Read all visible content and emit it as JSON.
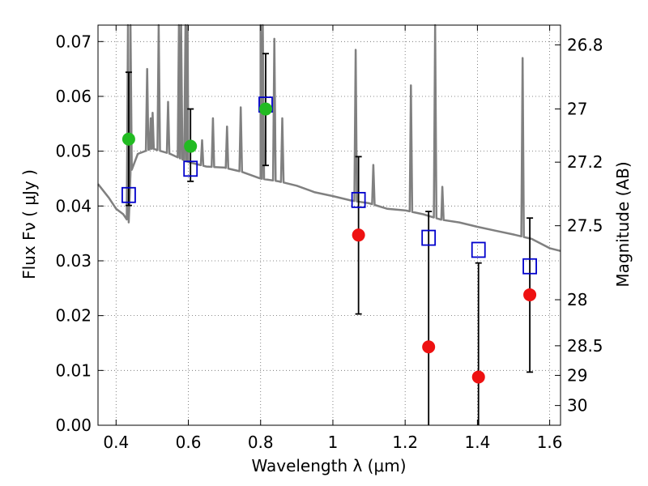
{
  "chart_data": {
    "type": "scatter",
    "xlabel": "Wavelength  λ (μm)",
    "ylabel": "Flux  Fν  ( μJy )",
    "y2label": "Magnitude (AB)",
    "xlim": [
      0.35,
      1.63
    ],
    "ylim": [
      0,
      0.073
    ],
    "grid": true,
    "x_ticks": [
      {
        "value": 0.4,
        "label": "0.4"
      },
      {
        "value": 0.6,
        "label": "0.6"
      },
      {
        "value": 0.8,
        "label": "0.8"
      },
      {
        "value": 1.0,
        "label": "1"
      },
      {
        "value": 1.2,
        "label": "1.2"
      },
      {
        "value": 1.4,
        "label": "1.4"
      },
      {
        "value": 1.6,
        "label": "1.6"
      }
    ],
    "y_ticks": [
      {
        "value": 0.0,
        "label": "0.00"
      },
      {
        "value": 0.01,
        "label": "0.01"
      },
      {
        "value": 0.02,
        "label": "0.02"
      },
      {
        "value": 0.03,
        "label": "0.03"
      },
      {
        "value": 0.04,
        "label": "0.04"
      },
      {
        "value": 0.05,
        "label": "0.05"
      },
      {
        "value": 0.06,
        "label": "0.06"
      },
      {
        "value": 0.07,
        "label": "0.07"
      }
    ],
    "y2_ticks": [
      {
        "label": "26.8",
        "flux": 0.0694
      },
      {
        "label": "27",
        "flux": 0.0577
      },
      {
        "label": "27.2",
        "flux": 0.048
      },
      {
        "label": "27.5",
        "flux": 0.0364
      },
      {
        "label": "28",
        "flux": 0.0229
      },
      {
        "label": "28.5",
        "flux": 0.0145
      },
      {
        "label": "29",
        "flux": 0.0091
      },
      {
        "label": "30",
        "flux": 0.0036
      }
    ],
    "colors": {
      "spectrum": "#808080",
      "model": "#0000cc",
      "detected": "#22bb22",
      "nondetected": "#ee1111",
      "errorbar": "#000000",
      "grid": "#666666"
    },
    "series": [
      {
        "marker": "open-square",
        "points": [
          {
            "x": 0.435,
            "y": 0.042
          },
          {
            "x": 0.606,
            "y": 0.0468
          },
          {
            "x": 0.814,
            "y": 0.0585
          },
          {
            "x": 1.071,
            "y": 0.0411
          },
          {
            "x": 1.265,
            "y": 0.0342
          },
          {
            "x": 1.403,
            "y": 0.032
          },
          {
            "x": 1.545,
            "y": 0.029
          }
        ]
      },
      {
        "marker": "green-circle",
        "points": [
          {
            "x": 0.435,
            "y": 0.0522,
            "err_low": 0.0401,
            "err_high": 0.0644
          },
          {
            "x": 0.606,
            "y": 0.0509,
            "err_low": 0.0445,
            "err_high": 0.0577
          },
          {
            "x": 0.814,
            "y": 0.0577,
            "err_low": 0.0474,
            "err_high": 0.0678
          }
        ]
      },
      {
        "marker": "red-circle",
        "points": [
          {
            "x": 1.071,
            "y": 0.0347,
            "err_low": 0.0203,
            "err_high": 0.049
          },
          {
            "x": 1.265,
            "y": 0.0143,
            "err_low": -0.001,
            "err_high": 0.039
          },
          {
            "x": 1.403,
            "y": 0.0088,
            "err_low": -0.001,
            "err_high": 0.0296
          },
          {
            "x": 1.545,
            "y": 0.0238,
            "err_low": 0.0097,
            "err_high": 0.0378
          }
        ]
      }
    ],
    "spectrum": {
      "continuum": [
        [
          0.35,
          0.044
        ],
        [
          0.38,
          0.0415
        ],
        [
          0.4,
          0.0395
        ],
        [
          0.42,
          0.0385
        ],
        [
          0.435,
          0.037
        ],
        [
          0.44,
          0.046
        ],
        [
          0.46,
          0.0495
        ],
        [
          0.5,
          0.0505
        ],
        [
          0.55,
          0.0495
        ],
        [
          0.6,
          0.048
        ],
        [
          0.65,
          0.0472
        ],
        [
          0.7,
          0.047
        ],
        [
          0.75,
          0.0462
        ],
        [
          0.8,
          0.045
        ],
        [
          0.85,
          0.0445
        ],
        [
          0.9,
          0.0437
        ],
        [
          0.95,
          0.0425
        ],
        [
          1.0,
          0.0418
        ],
        [
          1.05,
          0.041
        ],
        [
          1.1,
          0.0405
        ],
        [
          1.15,
          0.0395
        ],
        [
          1.2,
          0.0392
        ],
        [
          1.25,
          0.0385
        ],
        [
          1.3,
          0.0375
        ],
        [
          1.35,
          0.037
        ],
        [
          1.4,
          0.0362
        ],
        [
          1.45,
          0.0355
        ],
        [
          1.5,
          0.0348
        ],
        [
          1.55,
          0.034
        ],
        [
          1.6,
          0.0323
        ],
        [
          1.63,
          0.0318
        ]
      ],
      "lines": [
        {
          "x": 0.433,
          "peak": 0.074
        },
        {
          "x": 0.44,
          "peak": 0.074
        },
        {
          "x": 0.486,
          "peak": 0.065
        },
        {
          "x": 0.496,
          "peak": 0.056
        },
        {
          "x": 0.501,
          "peak": 0.057
        },
        {
          "x": 0.518,
          "peak": 0.074
        },
        {
          "x": 0.544,
          "peak": 0.059
        },
        {
          "x": 0.574,
          "peak": 0.074
        },
        {
          "x": 0.58,
          "peak": 0.074
        },
        {
          "x": 0.592,
          "peak": 0.074
        },
        {
          "x": 0.598,
          "peak": 0.074
        },
        {
          "x": 0.638,
          "peak": 0.052
        },
        {
          "x": 0.668,
          "peak": 0.056
        },
        {
          "x": 0.707,
          "peak": 0.0545
        },
        {
          "x": 0.745,
          "peak": 0.058
        },
        {
          "x": 0.8,
          "peak": 0.074
        },
        {
          "x": 0.806,
          "peak": 0.074
        },
        {
          "x": 0.838,
          "peak": 0.0705
        },
        {
          "x": 0.86,
          "peak": 0.056
        },
        {
          "x": 1.063,
          "peak": 0.0685
        },
        {
          "x": 1.112,
          "peak": 0.0475
        },
        {
          "x": 1.216,
          "peak": 0.062
        },
        {
          "x": 1.283,
          "peak": 0.074
        },
        {
          "x": 1.303,
          "peak": 0.0435
        },
        {
          "x": 1.525,
          "peak": 0.067
        }
      ]
    }
  }
}
